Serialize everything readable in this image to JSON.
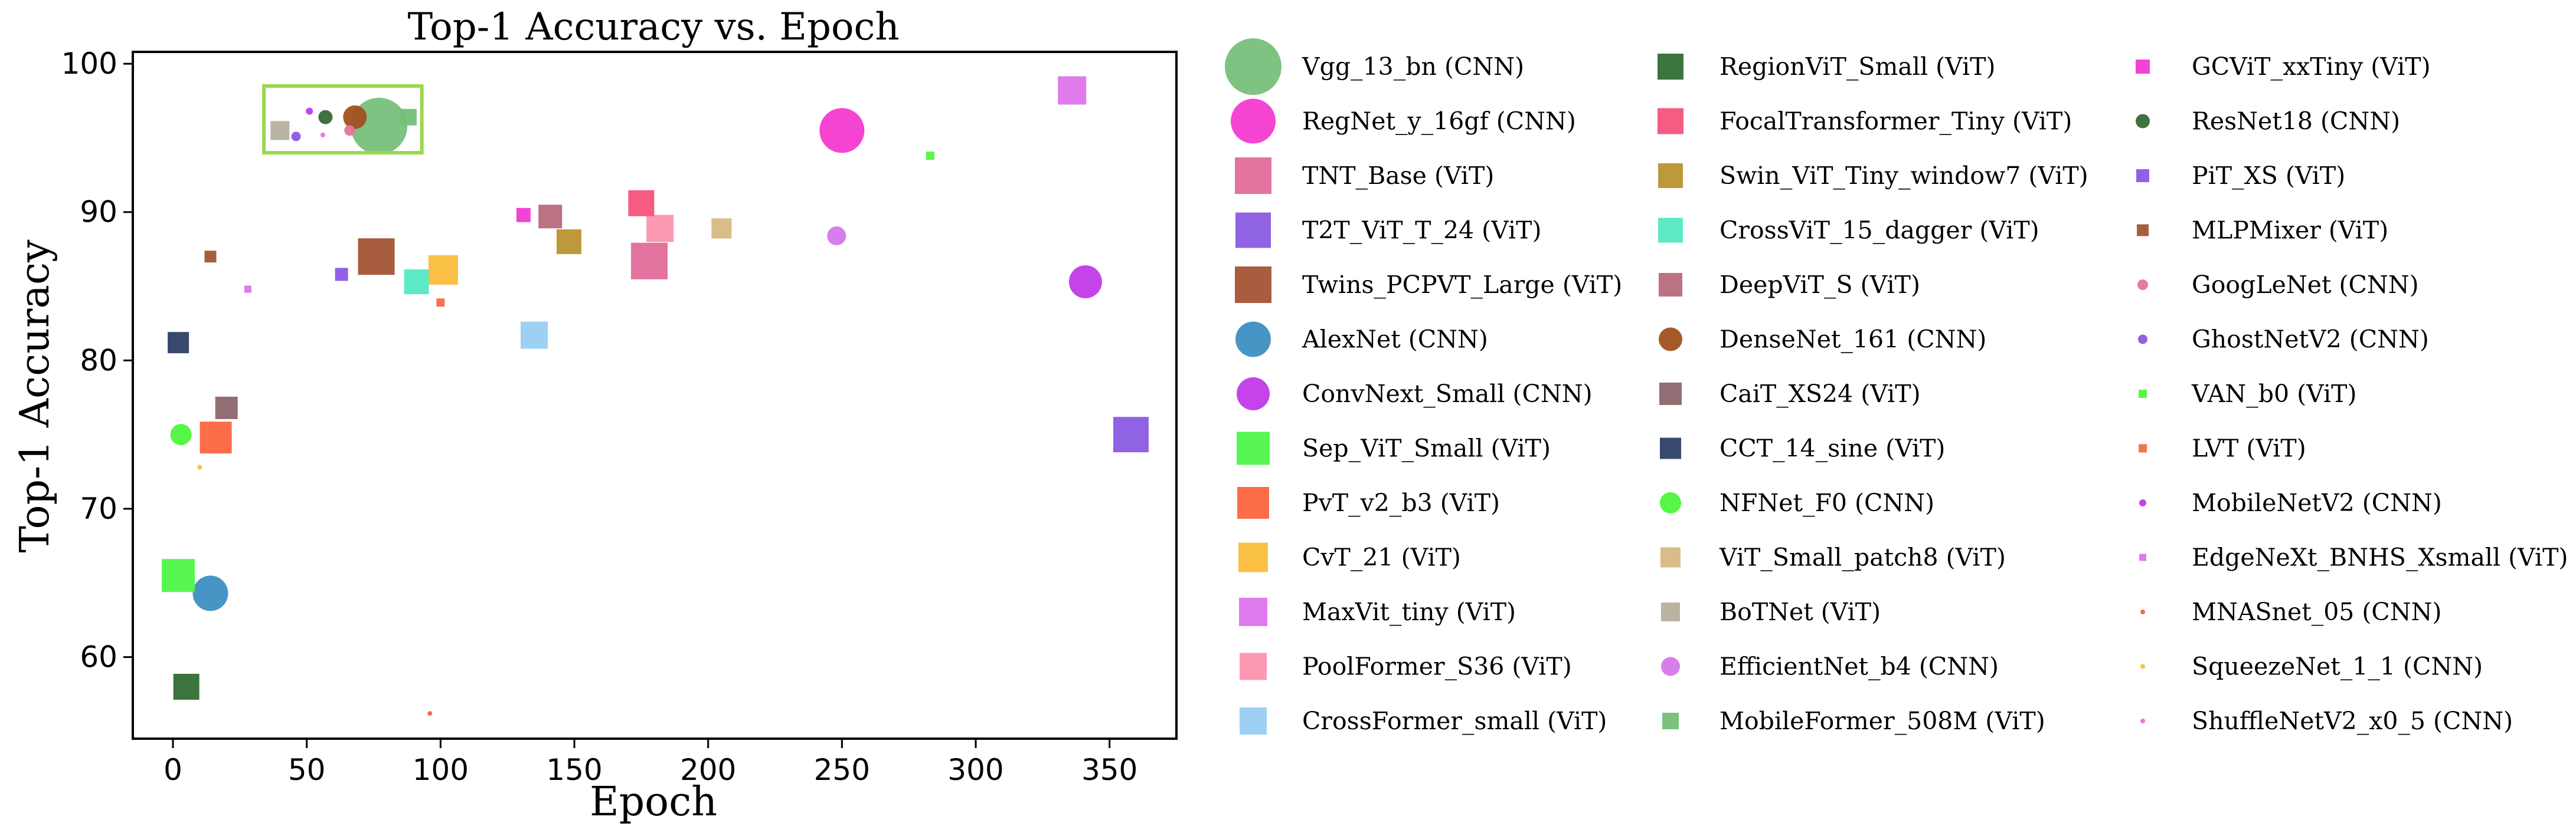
{
  "chart_data": {
    "type": "scatter",
    "title": "Top-1 Accuracy vs. Epoch",
    "xlabel": "Epoch",
    "ylabel": "Top-1 Accuracy",
    "xlim": [
      -15,
      375
    ],
    "ylim": [
      54.5,
      100.8
    ],
    "xticks": [
      0,
      50,
      100,
      150,
      200,
      250,
      300,
      350
    ],
    "yticks": [
      60,
      70,
      80,
      90,
      100
    ],
    "highlight_box": {
      "x": [
        34,
        93
      ],
      "y": [
        94.0,
        98.5
      ],
      "color": "#9ad84a"
    },
    "series": [
      {
        "name": "Vgg_13_bn (CNN)",
        "marker": "circle",
        "color": "#77c07a",
        "size": 48,
        "x": 77,
        "y": 95.8
      },
      {
        "name": "RegNet_y_16gf (CNN)",
        "marker": "circle",
        "color": "#f53ad0",
        "size": 38,
        "x": 250,
        "y": 95.5
      },
      {
        "name": "TNT_Base (ViT)",
        "marker": "square",
        "color": "#e06b99",
        "size": 31,
        "x": 178,
        "y": 86.7
      },
      {
        "name": "T2T_ViT_T_24 (ViT)",
        "marker": "square",
        "color": "#8a5be3",
        "size": 30,
        "x": 358,
        "y": 75.0
      },
      {
        "name": "Twins_PCPVT_Large (ViT)",
        "marker": "square",
        "color": "#a35434",
        "size": 31,
        "x": 76,
        "y": 87.0
      },
      {
        "name": "AlexNet (CNN)",
        "marker": "circle",
        "color": "#3d8fc2",
        "size": 30,
        "x": 14,
        "y": 64.3
      },
      {
        "name": "ConvNext_Small (CNN)",
        "marker": "circle",
        "color": "#c13ae8",
        "size": 28,
        "x": 341,
        "y": 85.3
      },
      {
        "name": "Sep_ViT_Small (ViT)",
        "marker": "square",
        "color": "#4ff54a",
        "size": 28,
        "x": 2,
        "y": 65.5
      },
      {
        "name": "PvT_v2_b3 (ViT)",
        "marker": "square",
        "color": "#fc6540",
        "size": 27,
        "x": 16,
        "y": 74.8
      },
      {
        "name": "CvT_21 (ViT)",
        "marker": "square",
        "color": "#fbbd3c",
        "size": 25,
        "x": 101,
        "y": 86.1
      },
      {
        "name": "MaxVit_tiny (ViT)",
        "marker": "square",
        "color": "#dd74ec",
        "size": 24,
        "x": 336,
        "y": 98.2
      },
      {
        "name": "PoolFormer_S36 (ViT)",
        "marker": "square",
        "color": "#fc94ae",
        "size": 23,
        "x": 182,
        "y": 88.9
      },
      {
        "name": "CrossFormer_small (ViT)",
        "marker": "square",
        "color": "#98cef2",
        "size": 23,
        "x": 135,
        "y": 81.7
      },
      {
        "name": "RegionViT_Small (ViT)",
        "marker": "square",
        "color": "#316d34",
        "size": 22,
        "x": 5,
        "y": 58.0
      },
      {
        "name": "FocalTransformer_Tiny (ViT)",
        "marker": "square",
        "color": "#f6527b",
        "size": 22,
        "x": 175,
        "y": 90.6
      },
      {
        "name": "Swin_ViT_Tiny_window7 (ViT)",
        "marker": "square",
        "color": "#b99332",
        "size": 21,
        "x": 148,
        "y": 88.0
      },
      {
        "name": "CrossViT_15_dagger (ViT)",
        "marker": "square",
        "color": "#55e8c2",
        "size": 21,
        "x": 91,
        "y": 85.3
      },
      {
        "name": "DeepViT_S (ViT)",
        "marker": "square",
        "color": "#b76a7b",
        "size": 20,
        "x": 141,
        "y": 89.7
      },
      {
        "name": "DenseNet_161 (CNN)",
        "marker": "circle",
        "color": "#a0501f",
        "size": 20,
        "x": 68,
        "y": 96.4
      },
      {
        "name": "CaiT_XS24 (ViT)",
        "marker": "square",
        "color": "#8c666d",
        "size": 19,
        "x": 20,
        "y": 76.8
      },
      {
        "name": "CCT_14_sine (ViT)",
        "marker": "square",
        "color": "#2e3f66",
        "size": 18,
        "x": 2,
        "y": 81.2
      },
      {
        "name": "NFNet_F0 (CNN)",
        "marker": "circle",
        "color": "#4df53a",
        "size": 18,
        "x": 3,
        "y": 75.0
      },
      {
        "name": "ViT_Small_patch8 (ViT)",
        "marker": "square",
        "color": "#d7b882",
        "size": 17,
        "x": 205,
        "y": 88.9
      },
      {
        "name": "BoTNet (ViT)",
        "marker": "square",
        "color": "#b4b09c",
        "size": 16,
        "x": 40,
        "y": 95.5
      },
      {
        "name": "EfficientNet_b4 (CNN)",
        "marker": "circle",
        "color": "#d477ea",
        "size": 16,
        "x": 248,
        "y": 88.4
      },
      {
        "name": "MobileFormer_508M (ViT)",
        "marker": "square",
        "color": "#74bf79",
        "size": 14,
        "x": 88,
        "y": 96.4
      },
      {
        "name": "GCViT_xxTiny (ViT)",
        "marker": "square",
        "color": "#f03ad2",
        "size": 12,
        "x": 131,
        "y": 89.8
      },
      {
        "name": "ResNet18 (CNN)",
        "marker": "circle",
        "color": "#356a36",
        "size": 12,
        "x": 57,
        "y": 96.4
      },
      {
        "name": "PiT_XS (ViT)",
        "marker": "square",
        "color": "#8b57e6",
        "size": 11,
        "x": 63,
        "y": 85.8
      },
      {
        "name": "MLPMixer (ViT)",
        "marker": "square",
        "color": "#a15631",
        "size": 10,
        "x": 14,
        "y": 87.0
      },
      {
        "name": "GoogLeNet (CNN)",
        "marker": "circle",
        "color": "#e6739c",
        "size": 9,
        "x": 66,
        "y": 95.5
      },
      {
        "name": "GhostNetV2 (CNN)",
        "marker": "circle",
        "color": "#8b58de",
        "size": 8,
        "x": 46,
        "y": 95.1
      },
      {
        "name": "VAN_b0 (ViT)",
        "marker": "square",
        "color": "#4ff53c",
        "size": 7,
        "x": 283,
        "y": 93.8
      },
      {
        "name": "LVT (ViT)",
        "marker": "square",
        "color": "#f56c47",
        "size": 7,
        "x": 100,
        "y": 83.9
      },
      {
        "name": "MobileNetV2 (CNN)",
        "marker": "circle",
        "color": "#c13ae8",
        "size": 6,
        "x": 51,
        "y": 96.8
      },
      {
        "name": "EdgeNeXt_BNHS_Xsmall (ViT)",
        "marker": "square",
        "color": "#dd74ec",
        "size": 6,
        "x": 28,
        "y": 84.8
      },
      {
        "name": "MNASnet_05 (CNN)",
        "marker": "circle",
        "color": "#f2623a",
        "size": 4,
        "x": 96,
        "y": 56.2
      },
      {
        "name": "SqueezeNet_1_1 (CNN)",
        "marker": "circle",
        "color": "#fbbd3c",
        "size": 4,
        "x": 10,
        "y": 72.8
      },
      {
        "name": "ShuffleNetV2_x0_5 (CNN)",
        "marker": "circle",
        "color": "#f06ad7",
        "size": 4,
        "x": 56,
        "y": 95.2
      }
    ]
  }
}
